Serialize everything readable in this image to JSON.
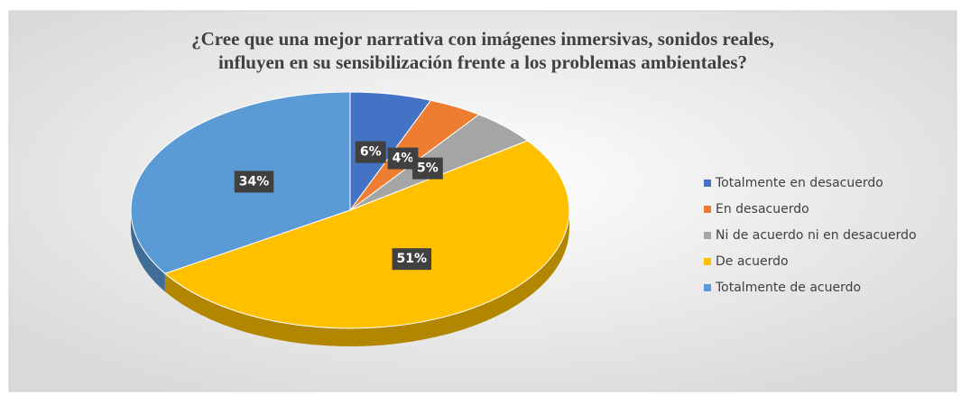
{
  "chart_data": {
    "type": "pie",
    "title": [
      "¿Cree que una mejor narrativa con imágenes inmersivas, sonidos reales,",
      "influyen en su sensibilización frente a los problemas ambientales?"
    ],
    "categories": [
      "Totalmente en desacuerdo",
      "En desacuerdo",
      "Ni de acuerdo ni en desacuerdo",
      "De acuerdo",
      "Totalmente de acuerdo"
    ],
    "values": [
      6,
      4,
      5,
      51,
      34
    ],
    "value_labels": [
      "6%",
      "4%",
      "5%",
      "51%",
      "34%"
    ],
    "colors": [
      "#4472c4",
      "#ed7d31",
      "#a5a5a5",
      "#ffc000",
      "#5b9bd5"
    ],
    "legend": "right"
  }
}
